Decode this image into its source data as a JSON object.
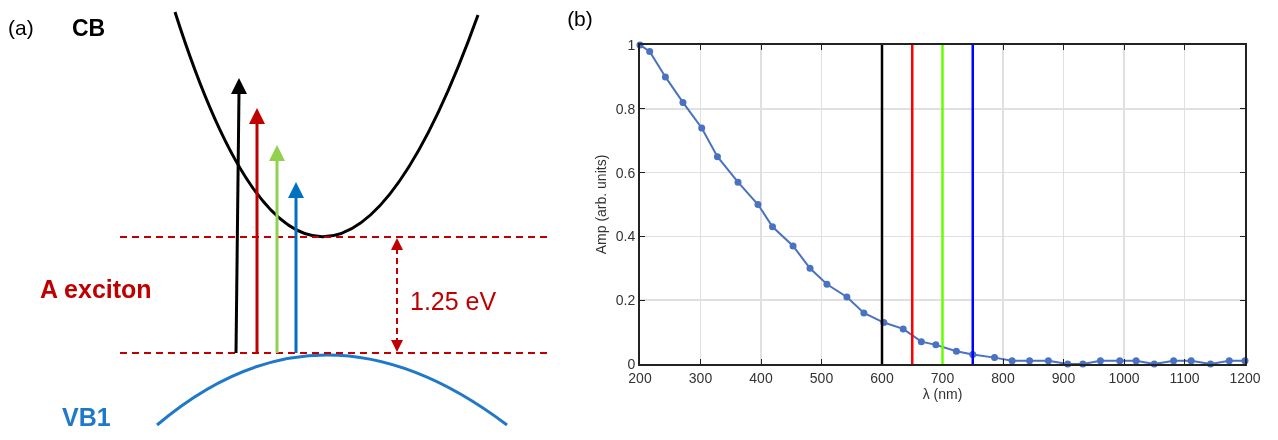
{
  "chart_data": [
    {
      "type": "other",
      "title": "(a)",
      "annotations": [
        "CB",
        "A exciton",
        "1.25 eV",
        "VB1"
      ]
    },
    {
      "type": "line",
      "title": "(b)",
      "xlabel": "λ (nm)",
      "ylabel": "Amp (arb. units)",
      "x": [
        200,
        216,
        242,
        271,
        302,
        328,
        362,
        395,
        419,
        453,
        481,
        509,
        542,
        570,
        603,
        635,
        665,
        689,
        723,
        750,
        786,
        815,
        844,
        875,
        907,
        932,
        961,
        993,
        1020,
        1050,
        1082,
        1111,
        1143,
        1174,
        1200
      ],
      "series": [
        {
          "color": "#4a72c0",
          "values": [
            1.0,
            0.98,
            0.9,
            0.82,
            0.74,
            0.65,
            0.57,
            0.5,
            0.43,
            0.37,
            0.3,
            0.25,
            0.21,
            0.16,
            0.13,
            0.11,
            0.07,
            0.06,
            0.04,
            0.03,
            0.02,
            0.01,
            0.01,
            0.01,
            0,
            0,
            0.01,
            0.01,
            0.01,
            0,
            0.01,
            0.01,
            0,
            0.01,
            0.01
          ]
        }
      ],
      "xlim": [
        200,
        1200
      ],
      "xticks": [
        200,
        300,
        400,
        500,
        600,
        700,
        800,
        900,
        1000,
        1100,
        1200
      ],
      "ylim": [
        0,
        1
      ],
      "yticks": [
        0,
        0.2,
        0.4,
        0.6,
        0.8,
        1
      ],
      "ref_lines": [
        {
          "axis": "x",
          "value": 600,
          "color": "#000000"
        },
        {
          "axis": "x",
          "value": 650,
          "color": "#ff0000"
        },
        {
          "axis": "x",
          "value": 700,
          "color": "#66ff00"
        },
        {
          "axis": "x",
          "value": 750,
          "color": "#0000ff"
        }
      ],
      "grid": true,
      "marker": "circle",
      "line_style": "solid"
    }
  ]
}
